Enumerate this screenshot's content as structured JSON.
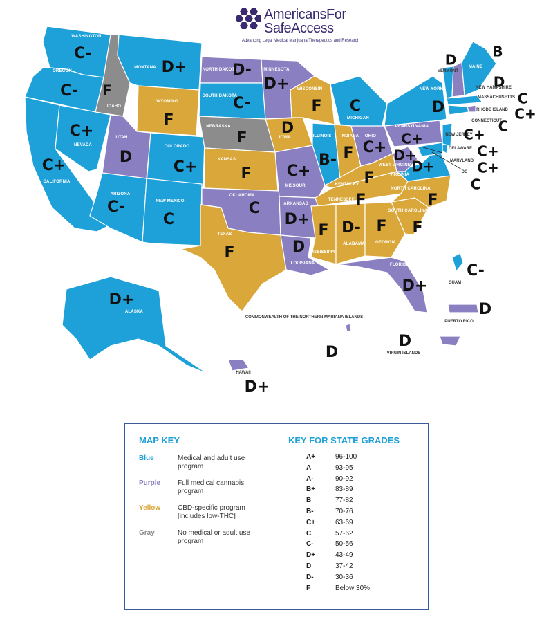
{
  "logo": {
    "line1": "AmericansFor",
    "line2": "SafeAccess",
    "tagline": "Advancing Legal Medical Marijuana Therapeutics and Research"
  },
  "colors": {
    "blue": "#1ea0d8",
    "purple": "#8a7fc0",
    "yellow": "#d9a73a",
    "gray": "#8c8c8c"
  },
  "states": [
    {
      "name": "WASHINGTON",
      "grade": "C-",
      "fill": "blue"
    },
    {
      "name": "OREGON",
      "grade": "C-",
      "fill": "blue"
    },
    {
      "name": "CALIFORNIA",
      "grade": "C+",
      "fill": "blue"
    },
    {
      "name": "NEVADA",
      "grade": "C+",
      "fill": "blue"
    },
    {
      "name": "IDAHO",
      "grade": "F",
      "fill": "gray"
    },
    {
      "name": "MONTANA",
      "grade": "D+",
      "fill": "blue"
    },
    {
      "name": "WYOMING",
      "grade": "F",
      "fill": "yellow"
    },
    {
      "name": "UTAH",
      "grade": "D",
      "fill": "purple"
    },
    {
      "name": "COLORADO",
      "grade": "C+",
      "fill": "blue"
    },
    {
      "name": "ARIZONA",
      "grade": "C-",
      "fill": "blue"
    },
    {
      "name": "NEW MEXICO",
      "grade": "C",
      "fill": "blue"
    },
    {
      "name": "NORTH DAKOTA",
      "grade": "D-",
      "fill": "purple"
    },
    {
      "name": "SOUTH DAKOTA",
      "grade": "C-",
      "fill": "blue"
    },
    {
      "name": "NEBRASKA",
      "grade": "F",
      "fill": "gray"
    },
    {
      "name": "KANSAS",
      "grade": "F",
      "fill": "yellow"
    },
    {
      "name": "OKLAHOMA",
      "grade": "C",
      "fill": "purple"
    },
    {
      "name": "TEXAS",
      "grade": "F",
      "fill": "yellow"
    },
    {
      "name": "MINNESOTA",
      "grade": "D+",
      "fill": "purple"
    },
    {
      "name": "IOWA",
      "grade": "D",
      "fill": "yellow"
    },
    {
      "name": "MISSOURI",
      "grade": "C+",
      "fill": "purple"
    },
    {
      "name": "ARKANSAS",
      "grade": "D+",
      "fill": "purple"
    },
    {
      "name": "LOUISIANA",
      "grade": "D",
      "fill": "purple"
    },
    {
      "name": "WISCONSIN",
      "grade": "F",
      "fill": "yellow"
    },
    {
      "name": "ILLINOIS",
      "grade": "B-",
      "fill": "blue"
    },
    {
      "name": "MICHIGAN",
      "grade": "C",
      "fill": "blue"
    },
    {
      "name": "INDIANA",
      "grade": "F",
      "fill": "yellow"
    },
    {
      "name": "OHIO",
      "grade": "C+",
      "fill": "purple"
    },
    {
      "name": "KENTUCKY",
      "grade": "F",
      "fill": "yellow"
    },
    {
      "name": "TENNESSEE",
      "grade": "F",
      "fill": "yellow"
    },
    {
      "name": "MISSISSIPPI",
      "grade": "F",
      "fill": "yellow"
    },
    {
      "name": "ALABAMA",
      "grade": "D-",
      "fill": "yellow"
    },
    {
      "name": "GEORGIA",
      "grade": "F",
      "fill": "yellow"
    },
    {
      "name": "FLORIDA",
      "grade": "D+",
      "fill": "purple"
    },
    {
      "name": "SOUTH CAROLINA",
      "grade": "F",
      "fill": "yellow"
    },
    {
      "name": "NORTH CAROLINA",
      "grade": "F",
      "fill": "yellow"
    },
    {
      "name": "VIRGINIA",
      "grade": "D+",
      "fill": "blue"
    },
    {
      "name": "WEST VIRGINIA",
      "grade": "D+",
      "fill": "purple"
    },
    {
      "name": "PENNSYLVANIA",
      "grade": "C+",
      "fill": "purple"
    },
    {
      "name": "NEW YORK",
      "grade": "D",
      "fill": "blue"
    },
    {
      "name": "VERMONT",
      "grade": "D",
      "fill": "blue"
    },
    {
      "name": "NEW HAMPSHIRE",
      "grade": "D",
      "fill": "purple"
    },
    {
      "name": "MAINE",
      "grade": "B",
      "fill": "blue"
    },
    {
      "name": "MASSACHUSETTS",
      "grade": "C",
      "fill": "blue"
    },
    {
      "name": "RHODE ISLAND",
      "grade": "C+",
      "fill": "purple"
    },
    {
      "name": "CONNECTICUT",
      "grade": "C",
      "fill": "blue"
    },
    {
      "name": "NEW JERSEY",
      "grade": "C+",
      "fill": "blue"
    },
    {
      "name": "DELAWARE",
      "grade": "C+",
      "fill": "blue"
    },
    {
      "name": "MARYLAND",
      "grade": "C+",
      "fill": "blue"
    },
    {
      "name": "DC",
      "grade": "C",
      "fill": "blue"
    },
    {
      "name": "ALASKA",
      "grade": "D+",
      "fill": "blue"
    },
    {
      "name": "HAWAII",
      "grade": "D+",
      "fill": "purple"
    },
    {
      "name": "GUAM",
      "grade": "C-",
      "fill": "blue"
    },
    {
      "name": "PUERTO RICO",
      "grade": "D",
      "fill": "purple"
    },
    {
      "name": "VIRGIN ISLANDS",
      "grade": "D",
      "fill": "purple"
    },
    {
      "name": "COMMONWEALTH OF THE NORTHERN MARIANA ISLANDS",
      "grade": "D",
      "fill": "purple"
    }
  ],
  "legend": {
    "map_key_title": "MAP KEY",
    "grades_title": "KEY FOR STATE GRADES",
    "keys": [
      {
        "label": "Blue",
        "line1": "Medical and adult",
        "line2": "use program",
        "color": "blue"
      },
      {
        "label": "Purple",
        "line1": "Full medical cannabis",
        "line2": "program",
        "color": "purple"
      },
      {
        "label": "Yellow",
        "line1": "CBD-specific program",
        "line2": "[includes low-THC]",
        "color": "yellow"
      },
      {
        "label": "Gray",
        "line1": "No medical or adult",
        "line2": "use program",
        "color": "gray"
      }
    ],
    "grades": [
      {
        "grade": "A+",
        "range": "96-100"
      },
      {
        "grade": "A",
        "range": "93-95"
      },
      {
        "grade": "A-",
        "range": "90-92"
      },
      {
        "grade": "B+",
        "range": "83-89"
      },
      {
        "grade": "B",
        "range": "77-82"
      },
      {
        "grade": "B-",
        "range": "70-76"
      },
      {
        "grade": "C+",
        "range": "63-69"
      },
      {
        "grade": "C",
        "range": "57-62"
      },
      {
        "grade": "C-",
        "range": "50-56"
      },
      {
        "grade": "D+",
        "range": "43-49"
      },
      {
        "grade": "D",
        "range": "37-42"
      },
      {
        "grade": "D-",
        "range": "30-36"
      },
      {
        "grade": "F",
        "range": "Below 30%"
      }
    ]
  }
}
